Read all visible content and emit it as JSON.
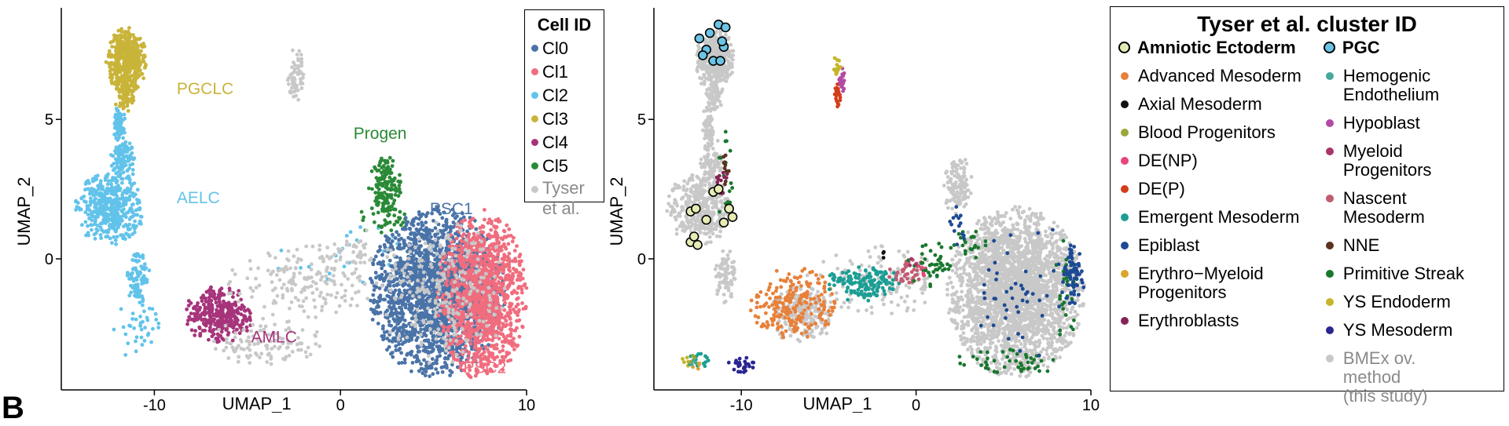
{
  "chart_data": [
    {
      "type": "scatter",
      "xlabel": "UMAP_1",
      "ylabel": "UMAP_2",
      "xticks": [
        -10,
        0,
        10
      ],
      "yticks": [
        0,
        5
      ],
      "xlim": [
        -15,
        10
      ],
      "ylim": [
        -4.7,
        9
      ],
      "legend": {
        "title": "Cell ID",
        "placement": "right",
        "entries": [
          {
            "label": "Cl0",
            "color": "#4a73a8"
          },
          {
            "label": "Cl1",
            "color": "#f06d7e"
          },
          {
            "label": "Cl2",
            "color": "#62c3ea"
          },
          {
            "label": "Cl3",
            "color": "#c9b43a"
          },
          {
            "label": "Cl4",
            "color": "#a6347b"
          },
          {
            "label": "Cl5",
            "color": "#2a8a37"
          },
          {
            "label": "Tyser et al.",
            "color": "#c8c8c8",
            "lines": [
              "Tyser",
              "et al."
            ]
          }
        ]
      },
      "annotations": [
        {
          "text": "PGCLC",
          "x": -8.8,
          "y": 5.9,
          "color": "#c9b43a"
        },
        {
          "text": "AELC",
          "x": -8.8,
          "y": 2.0,
          "color": "#62c3ea"
        },
        {
          "text": "AMLC",
          "x": -4.8,
          "y": -3.0,
          "color": "#a6347b"
        },
        {
          "text": "Progen",
          "x": 0.7,
          "y": 4.3,
          "color": "#2a8a37"
        },
        {
          "text": "PSC1",
          "x": 4.8,
          "y": 1.6,
          "color": "#4a73a8"
        },
        {
          "text": "PSC2",
          "x": 6.6,
          "y": -4.1,
          "color": "#f06d7e"
        }
      ],
      "clusters": [
        {
          "label": "Cl3",
          "color": "#c9b43a",
          "regions": [
            {
              "cx": -11.5,
              "cy": 7.1,
              "rx": 1.0,
              "ry": 1.1,
              "n": 480
            },
            {
              "cx": -11.6,
              "cy": 5.8,
              "rx": 0.5,
              "ry": 0.5,
              "n": 70
            }
          ]
        },
        {
          "label": "Cl2",
          "color": "#62c3ea",
          "regions": [
            {
              "cx": -12.4,
              "cy": 1.8,
              "rx": 1.7,
              "ry": 1.2,
              "n": 440
            },
            {
              "cx": -11.7,
              "cy": 3.5,
              "rx": 0.6,
              "ry": 0.8,
              "n": 120
            },
            {
              "cx": -11.9,
              "cy": 4.8,
              "rx": 0.3,
              "ry": 0.7,
              "n": 70
            },
            {
              "cx": -10.9,
              "cy": -0.6,
              "rx": 0.6,
              "ry": 0.9,
              "n": 90
            },
            {
              "cx": -11.0,
              "cy": -2.5,
              "rx": 1.2,
              "ry": 1.0,
              "n": 40
            },
            {
              "cx": 0.8,
              "cy": 0.0,
              "rx": 4.0,
              "ry": 1.2,
              "n": 30
            }
          ]
        },
        {
          "label": "Cl4",
          "color": "#a6347b",
          "regions": [
            {
              "cx": -6.5,
              "cy": -2.0,
              "rx": 1.7,
              "ry": 1.0,
              "n": 320
            }
          ]
        },
        {
          "label": "Cl5",
          "color": "#2a8a37",
          "regions": [
            {
              "cx": 2.4,
              "cy": 2.6,
              "rx": 0.8,
              "ry": 1.0,
              "n": 140
            },
            {
              "cx": 2.4,
              "cy": 1.4,
              "rx": 1.4,
              "ry": 0.5,
              "n": 40
            }
          ]
        },
        {
          "label": "Cl0",
          "color": "#4a73a8",
          "regions": [
            {
              "cx": 5.2,
              "cy": -1.2,
              "rx": 3.4,
              "ry": 2.8,
              "n": 2000
            }
          ]
        },
        {
          "label": "Cl1",
          "color": "#f06d7e",
          "regions": [
            {
              "cx": 7.6,
              "cy": -1.3,
              "rx": 2.2,
              "ry": 2.8,
              "n": 1300
            }
          ]
        },
        {
          "label": "Tyser et al.",
          "color": "#c8c8c8",
          "regions": [
            {
              "cx": -2.0,
              "cy": -0.8,
              "rx": 4.0,
              "ry": 1.2,
              "n": 180
            },
            {
              "cx": -4.0,
              "cy": -3.0,
              "rx": 2.8,
              "ry": 0.8,
              "n": 110
            },
            {
              "cx": -2.4,
              "cy": 6.6,
              "rx": 0.4,
              "ry": 0.9,
              "n": 60
            },
            {
              "cx": 1.0,
              "cy": 0.4,
              "rx": 1.5,
              "ry": 0.6,
              "n": 30
            },
            {
              "cx": 5.6,
              "cy": -1.2,
              "rx": 3.2,
              "ry": 2.5,
              "n": 250
            }
          ]
        }
      ]
    },
    {
      "type": "scatter",
      "xlabel": "UMAP_1",
      "ylabel": "UMAP_2",
      "xticks": [
        -10,
        0,
        10
      ],
      "yticks": [
        0,
        5
      ],
      "xlim": [
        -15,
        10
      ],
      "ylim": [
        -4.7,
        9
      ],
      "legend": {
        "title": "Tyser et al. cluster ID",
        "placement": "right",
        "columns": [
          [
            {
              "label": "Amniotic Ectoderm",
              "color": "#e6ebb4",
              "outlined": true,
              "bold": true
            },
            {
              "label": "Advanced Mesoderm",
              "color": "#e8803a"
            },
            {
              "label": "Axial Mesoderm",
              "color": "#111111"
            },
            {
              "label": "Blood Progenitors",
              "color": "#9aa83a"
            },
            {
              "label": "DE(NP)",
              "color": "#e8457a"
            },
            {
              "label": "DE(P)",
              "color": "#d43d1a"
            },
            {
              "label": "Emergent Mesoderm",
              "color": "#1d9e94"
            },
            {
              "label": "Epiblast",
              "color": "#1d4a93"
            },
            {
              "label": "Erythro−Myeloid Progenitors",
              "color": "#d9a52b",
              "lines": [
                "Erythro−Myeloid",
                "Progenitors"
              ]
            },
            {
              "label": "Erythroblasts",
              "color": "#862457"
            }
          ],
          [
            {
              "label": "PGC",
              "color": "#6cc4e4",
              "outlined": true,
              "bold": true
            },
            {
              "label": "Hemogenic Endothelium",
              "color": "#46a89a",
              "lines": [
                "Hemogenic",
                "Endothelium"
              ]
            },
            {
              "label": "Hypoblast",
              "color": "#b34aa6"
            },
            {
              "label": "Myeloid Progenitors",
              "color": "#a8356a",
              "lines": [
                "Myeloid",
                "Progenitors"
              ]
            },
            {
              "label": "Nascent Mesoderm",
              "color": "#c25c71",
              "lines": [
                "Nascent",
                "Mesoderm"
              ]
            },
            {
              "label": "NNE",
              "color": "#5b3320"
            },
            {
              "label": "Primitive Streak",
              "color": "#19772e"
            },
            {
              "label": "YS Endoderm",
              "color": "#c4b52a"
            },
            {
              "label": "YS Mesoderm",
              "color": "#2a2590"
            },
            {
              "label": "BMEx ov. method (this study)",
              "color": "#c8c8c8",
              "lines": [
                "BMEx ov.",
                "method",
                "(this study)"
              ],
              "grey": true
            }
          ]
        ]
      },
      "clusters": [
        {
          "label": "BMEx ov. method (this study)",
          "color": "#c8c8c8",
          "regions": [
            {
              "cx": -11.5,
              "cy": 7.1,
              "rx": 1.0,
              "ry": 1.1,
              "n": 360
            },
            {
              "cx": -11.6,
              "cy": 5.8,
              "rx": 0.5,
              "ry": 0.5,
              "n": 50
            },
            {
              "cx": -12.4,
              "cy": 1.8,
              "rx": 1.7,
              "ry": 1.2,
              "n": 360
            },
            {
              "cx": -11.7,
              "cy": 3.5,
              "rx": 0.6,
              "ry": 0.8,
              "n": 100
            },
            {
              "cx": -11.9,
              "cy": 4.8,
              "rx": 0.3,
              "ry": 0.7,
              "n": 60
            },
            {
              "cx": -10.9,
              "cy": -0.6,
              "rx": 0.6,
              "ry": 0.9,
              "n": 80
            },
            {
              "cx": -6.5,
              "cy": -2.0,
              "rx": 1.7,
              "ry": 1.0,
              "n": 230
            },
            {
              "cx": -2.0,
              "cy": -0.8,
              "rx": 4.0,
              "ry": 1.2,
              "n": 120
            },
            {
              "cx": 2.4,
              "cy": 2.6,
              "rx": 0.8,
              "ry": 1.0,
              "n": 120
            },
            {
              "cx": 5.7,
              "cy": -1.2,
              "rx": 3.6,
              "ry": 2.8,
              "n": 2600
            }
          ]
        },
        {
          "label": "Hypoblast",
          "color": "#b34aa6",
          "regions": [
            {
              "cx": -4.2,
              "cy": 6.4,
              "rx": 0.2,
              "ry": 0.4,
              "n": 22
            }
          ]
        },
        {
          "label": "YS Endoderm",
          "color": "#c4b52a",
          "regions": [
            {
              "cx": -4.5,
              "cy": 6.9,
              "rx": 0.2,
              "ry": 0.4,
              "n": 16
            },
            {
              "cx": -13.0,
              "cy": -3.7,
              "rx": 0.4,
              "ry": 0.2,
              "n": 6
            }
          ]
        },
        {
          "label": "DE(P)",
          "color": "#d43d1a",
          "regions": [
            {
              "cx": -4.5,
              "cy": 5.9,
              "rx": 0.2,
              "ry": 0.5,
              "n": 22
            }
          ]
        },
        {
          "label": "Advanced Mesoderm",
          "color": "#e8803a",
          "regions": [
            {
              "cx": -7.0,
              "cy": -1.6,
              "rx": 2.3,
              "ry": 1.2,
              "n": 230
            }
          ]
        },
        {
          "label": "Emergent Mesoderm",
          "color": "#1d9e94",
          "regions": [
            {
              "cx": -3.0,
              "cy": -0.9,
              "rx": 2.0,
              "ry": 0.6,
              "n": 150
            },
            {
              "cx": -12.5,
              "cy": -3.7,
              "rx": 0.6,
              "ry": 0.3,
              "n": 14
            }
          ]
        },
        {
          "label": "Nascent Mesoderm",
          "color": "#c25c71",
          "regions": [
            {
              "cx": -0.5,
              "cy": -0.5,
              "rx": 1.0,
              "ry": 0.5,
              "n": 40
            }
          ]
        },
        {
          "label": "Primitive Streak",
          "color": "#19772e",
          "regions": [
            {
              "cx": 0.9,
              "cy": -0.2,
              "rx": 1.3,
              "ry": 0.8,
              "n": 40
            },
            {
              "cx": -10.9,
              "cy": 2.8,
              "rx": 0.4,
              "ry": 2.0,
              "n": 18
            },
            {
              "cx": 3.0,
              "cy": 0.6,
              "rx": 1.0,
              "ry": 0.6,
              "n": 22
            },
            {
              "cx": 5.4,
              "cy": -3.7,
              "rx": 3.0,
              "ry": 0.6,
              "n": 45
            },
            {
              "cx": 8.6,
              "cy": -1.2,
              "rx": 0.6,
              "ry": 2.0,
              "n": 25
            }
          ]
        },
        {
          "label": "Epiblast",
          "color": "#1d4a93",
          "regions": [
            {
              "cx": 9.0,
              "cy": -0.6,
              "rx": 0.6,
              "ry": 1.1,
              "n": 70
            },
            {
              "cx": 6.0,
              "cy": -1.0,
              "rx": 3.0,
              "ry": 2.4,
              "n": 50
            },
            {
              "cx": 2.3,
              "cy": 1.2,
              "rx": 0.5,
              "ry": 0.8,
              "n": 14
            }
          ]
        },
        {
          "label": "YS Mesoderm",
          "color": "#2a2590",
          "regions": [
            {
              "cx": -10.0,
              "cy": -3.8,
              "rx": 0.9,
              "ry": 0.3,
              "n": 28
            }
          ]
        },
        {
          "label": "Blood Progenitors",
          "color": "#9aa83a",
          "regions": [
            {
              "cx": -12.8,
              "cy": -3.6,
              "rx": 0.3,
              "ry": 0.2,
              "n": 5
            }
          ]
        },
        {
          "label": "Erythro−Myeloid Progenitors",
          "color": "#d9a52b",
          "regions": [
            {
              "cx": -12.6,
              "cy": -3.8,
              "rx": 0.3,
              "ry": 0.2,
              "n": 4
            }
          ]
        },
        {
          "label": "Erythroblasts",
          "color": "#862457",
          "regions": [
            {
              "cx": -11.2,
              "cy": 2.8,
              "rx": 0.4,
              "ry": 0.6,
              "n": 16
            }
          ]
        },
        {
          "label": "NNE",
          "color": "#5b3320",
          "regions": [
            {
              "cx": -11.0,
              "cy": 3.2,
              "rx": 0.3,
              "ry": 0.5,
              "n": 10
            }
          ]
        },
        {
          "label": "Axial Mesoderm",
          "color": "#111111",
          "regions": [
            {
              "cx": -1.8,
              "cy": 0.1,
              "rx": 0.2,
              "ry": 0.15,
              "n": 3
            }
          ]
        },
        {
          "label": "Hemogenic Endothelium",
          "color": "#46a89a",
          "regions": [
            {
              "cx": -12.7,
              "cy": -3.75,
              "rx": 0.2,
              "ry": 0.15,
              "n": 3
            }
          ]
        },
        {
          "label": "Myeloid Progenitors",
          "color": "#a8356a",
          "regions": [
            {
              "cx": -0.2,
              "cy": -0.1,
              "rx": 0.3,
              "ry": 0.2,
              "n": 3
            }
          ]
        },
        {
          "label": "DE(NP)",
          "color": "#e8457a",
          "regions": [
            {
              "cx": 0.3,
              "cy": -0.5,
              "rx": 0.3,
              "ry": 0.2,
              "n": 3
            }
          ]
        }
      ],
      "highlighted_points": [
        {
          "label": "PGC",
          "color": "#6cc4e4",
          "points": [
            [
              -12.4,
              7.9
            ],
            [
              -11.8,
              8.1
            ],
            [
              -11.3,
              8.4
            ],
            [
              -10.9,
              8.3
            ],
            [
              -12.0,
              7.5
            ],
            [
              -11.0,
              7.6
            ],
            [
              -11.1,
              7.8
            ],
            [
              -12.2,
              7.3
            ],
            [
              -11.6,
              7.1
            ],
            [
              -11.2,
              7.1
            ]
          ]
        },
        {
          "label": "Amniotic Ectoderm",
          "color": "#e6ebb4",
          "points": [
            [
              -12.9,
              1.7
            ],
            [
              -12.6,
              1.8
            ],
            [
              -12.0,
              1.4
            ],
            [
              -11.6,
              2.4
            ],
            [
              -11.3,
              2.5
            ],
            [
              -10.7,
              1.8
            ],
            [
              -10.5,
              1.5
            ],
            [
              -11.0,
              1.3
            ],
            [
              -12.9,
              0.6
            ],
            [
              -12.7,
              0.8
            ],
            [
              -12.5,
              0.5
            ]
          ]
        }
      ]
    }
  ],
  "panel_letter": "B"
}
